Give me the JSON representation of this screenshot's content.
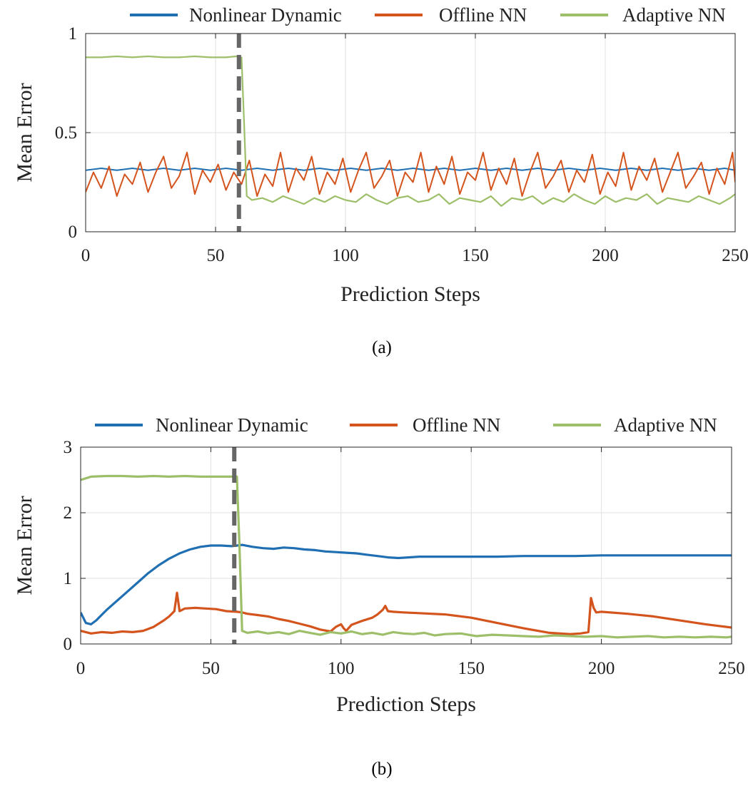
{
  "chart_data": [
    {
      "type": "line",
      "caption": "(a)",
      "xlabel": "Prediction Steps",
      "ylabel": "Mean Error",
      "xlim": [
        0,
        250
      ],
      "ylim": [
        0,
        1
      ],
      "xticks": [
        0,
        50,
        100,
        150,
        200,
        250
      ],
      "yticks": [
        0,
        0.5,
        1
      ],
      "ytick_labels": [
        "0",
        "0.5",
        "1"
      ],
      "grid": true,
      "legend_position": "top",
      "vline": {
        "x": 59,
        "style": "dashed",
        "color": "#666666"
      },
      "series": [
        {
          "name": "Nonlinear Dynamic",
          "color": "#1f6fb2",
          "x": [
            0,
            6,
            12,
            18,
            24,
            30,
            36,
            42,
            48,
            54,
            60,
            66,
            72,
            78,
            84,
            90,
            96,
            102,
            108,
            114,
            120,
            126,
            132,
            138,
            144,
            150,
            156,
            162,
            168,
            174,
            180,
            186,
            192,
            198,
            204,
            210,
            216,
            222,
            228,
            234,
            240,
            246,
            250
          ],
          "y": [
            0.31,
            0.32,
            0.31,
            0.32,
            0.31,
            0.32,
            0.31,
            0.32,
            0.31,
            0.32,
            0.31,
            0.32,
            0.31,
            0.32,
            0.31,
            0.32,
            0.31,
            0.32,
            0.31,
            0.32,
            0.31,
            0.32,
            0.31,
            0.32,
            0.31,
            0.32,
            0.31,
            0.32,
            0.31,
            0.32,
            0.31,
            0.32,
            0.31,
            0.32,
            0.31,
            0.32,
            0.31,
            0.32,
            0.31,
            0.32,
            0.31,
            0.32,
            0.31
          ]
        },
        {
          "name": "Offline NN",
          "color": "#d4541e",
          "x": [
            0,
            3,
            6,
            9,
            12,
            15,
            18,
            21,
            24,
            27,
            30,
            33,
            36,
            39,
            42,
            45,
            48,
            51,
            54,
            57,
            60,
            63,
            66,
            69,
            72,
            75,
            78,
            81,
            84,
            87,
            90,
            93,
            96,
            99,
            102,
            105,
            108,
            111,
            114,
            117,
            120,
            123,
            126,
            129,
            132,
            135,
            138,
            141,
            144,
            147,
            150,
            153,
            156,
            159,
            162,
            165,
            168,
            171,
            174,
            177,
            180,
            183,
            186,
            189,
            192,
            195,
            198,
            201,
            204,
            207,
            210,
            213,
            216,
            219,
            222,
            225,
            228,
            231,
            234,
            237,
            240,
            243,
            246,
            249,
            250
          ],
          "y": [
            0.2,
            0.3,
            0.22,
            0.33,
            0.18,
            0.29,
            0.24,
            0.35,
            0.2,
            0.3,
            0.38,
            0.22,
            0.28,
            0.4,
            0.19,
            0.31,
            0.25,
            0.34,
            0.21,
            0.3,
            0.24,
            0.36,
            0.18,
            0.29,
            0.23,
            0.4,
            0.2,
            0.32,
            0.26,
            0.38,
            0.19,
            0.3,
            0.24,
            0.37,
            0.2,
            0.31,
            0.4,
            0.22,
            0.28,
            0.36,
            0.18,
            0.3,
            0.25,
            0.4,
            0.2,
            0.33,
            0.24,
            0.38,
            0.19,
            0.3,
            0.26,
            0.4,
            0.21,
            0.32,
            0.24,
            0.37,
            0.18,
            0.3,
            0.4,
            0.22,
            0.28,
            0.36,
            0.2,
            0.31,
            0.25,
            0.39,
            0.19,
            0.3,
            0.23,
            0.4,
            0.21,
            0.33,
            0.26,
            0.37,
            0.2,
            0.3,
            0.4,
            0.22,
            0.28,
            0.35,
            0.19,
            0.32,
            0.24,
            0.4,
            0.25
          ]
        },
        {
          "name": "Adaptive NN",
          "color": "#9dbf6a",
          "x": [
            0,
            6,
            12,
            18,
            24,
            30,
            36,
            42,
            48,
            54,
            58,
            60,
            61,
            62,
            64,
            68,
            72,
            76,
            80,
            84,
            88,
            92,
            96,
            100,
            104,
            108,
            112,
            116,
            120,
            124,
            128,
            132,
            136,
            140,
            144,
            148,
            152,
            156,
            160,
            164,
            168,
            172,
            176,
            180,
            184,
            188,
            192,
            196,
            200,
            204,
            208,
            212,
            216,
            220,
            224,
            228,
            232,
            236,
            240,
            244,
            248,
            250
          ],
          "y": [
            0.88,
            0.88,
            0.885,
            0.88,
            0.885,
            0.88,
            0.88,
            0.885,
            0.88,
            0.88,
            0.885,
            0.88,
            0.55,
            0.18,
            0.16,
            0.17,
            0.15,
            0.18,
            0.16,
            0.14,
            0.17,
            0.15,
            0.18,
            0.16,
            0.15,
            0.19,
            0.16,
            0.14,
            0.17,
            0.18,
            0.15,
            0.16,
            0.19,
            0.14,
            0.17,
            0.16,
            0.15,
            0.18,
            0.13,
            0.17,
            0.16,
            0.18,
            0.14,
            0.17,
            0.15,
            0.19,
            0.16,
            0.14,
            0.18,
            0.15,
            0.17,
            0.16,
            0.19,
            0.14,
            0.17,
            0.16,
            0.15,
            0.18,
            0.16,
            0.14,
            0.17,
            0.19
          ]
        }
      ]
    },
    {
      "type": "line",
      "caption": "(b)",
      "xlabel": "Prediction Steps",
      "ylabel": "Mean Error",
      "xlim": [
        0,
        250
      ],
      "ylim": [
        0,
        3
      ],
      "xticks": [
        0,
        50,
        100,
        150,
        200,
        250
      ],
      "yticks": [
        0,
        1,
        2,
        3
      ],
      "ytick_labels": [
        "0",
        "1",
        "2",
        "3"
      ],
      "grid": true,
      "legend_position": "top",
      "vline": {
        "x": 59,
        "style": "dashed",
        "color": "#666666"
      },
      "series": [
        {
          "name": "Nonlinear Dynamic",
          "color": "#1f6fb2",
          "x": [
            0,
            2,
            4,
            6,
            8,
            10,
            14,
            18,
            22,
            26,
            30,
            34,
            38,
            42,
            46,
            50,
            54,
            58,
            62,
            66,
            70,
            74,
            78,
            82,
            86,
            90,
            94,
            98,
            102,
            106,
            110,
            114,
            118,
            122,
            126,
            130,
            140,
            150,
            160,
            170,
            180,
            190,
            200,
            210,
            220,
            230,
            240,
            250
          ],
          "y": [
            0.48,
            0.32,
            0.3,
            0.36,
            0.44,
            0.52,
            0.66,
            0.8,
            0.94,
            1.08,
            1.2,
            1.3,
            1.38,
            1.44,
            1.48,
            1.5,
            1.5,
            1.49,
            1.51,
            1.48,
            1.46,
            1.45,
            1.47,
            1.46,
            1.44,
            1.43,
            1.41,
            1.4,
            1.39,
            1.38,
            1.36,
            1.34,
            1.32,
            1.31,
            1.32,
            1.33,
            1.33,
            1.33,
            1.33,
            1.34,
            1.34,
            1.34,
            1.35,
            1.35,
            1.35,
            1.35,
            1.35,
            1.35
          ]
        },
        {
          "name": "Offline NN",
          "color": "#d4541e",
          "x": [
            0,
            4,
            8,
            12,
            16,
            20,
            24,
            28,
            32,
            34,
            36,
            37,
            38,
            40,
            44,
            48,
            52,
            56,
            60,
            62,
            64,
            68,
            72,
            76,
            80,
            84,
            88,
            92,
            96,
            98,
            100,
            101,
            102,
            104,
            108,
            112,
            114,
            116,
            117,
            118,
            120,
            124,
            130,
            140,
            150,
            160,
            170,
            180,
            188,
            192,
            195,
            196,
            197,
            198,
            200,
            210,
            220,
            230,
            240,
            250
          ],
          "y": [
            0.2,
            0.16,
            0.18,
            0.17,
            0.19,
            0.18,
            0.2,
            0.26,
            0.36,
            0.42,
            0.5,
            0.78,
            0.5,
            0.54,
            0.55,
            0.54,
            0.53,
            0.5,
            0.49,
            0.48,
            0.46,
            0.44,
            0.42,
            0.38,
            0.35,
            0.31,
            0.27,
            0.22,
            0.19,
            0.26,
            0.3,
            0.24,
            0.2,
            0.29,
            0.35,
            0.4,
            0.45,
            0.52,
            0.58,
            0.5,
            0.49,
            0.48,
            0.47,
            0.45,
            0.4,
            0.32,
            0.24,
            0.17,
            0.15,
            0.16,
            0.18,
            0.7,
            0.55,
            0.48,
            0.49,
            0.46,
            0.42,
            0.36,
            0.3,
            0.25
          ]
        },
        {
          "name": "Adaptive NN",
          "color": "#9dbf6a",
          "x": [
            0,
            4,
            10,
            16,
            22,
            28,
            34,
            40,
            46,
            52,
            58,
            60,
            61,
            62,
            64,
            68,
            72,
            76,
            80,
            84,
            88,
            92,
            96,
            100,
            104,
            108,
            112,
            116,
            120,
            124,
            128,
            132,
            136,
            140,
            146,
            152,
            158,
            164,
            170,
            176,
            182,
            188,
            194,
            200,
            206,
            212,
            218,
            224,
            230,
            236,
            242,
            248,
            250
          ],
          "y": [
            2.5,
            2.55,
            2.56,
            2.56,
            2.55,
            2.56,
            2.55,
            2.56,
            2.55,
            2.55,
            2.55,
            2.55,
            1.5,
            0.2,
            0.17,
            0.19,
            0.16,
            0.18,
            0.15,
            0.2,
            0.17,
            0.14,
            0.18,
            0.16,
            0.19,
            0.15,
            0.17,
            0.14,
            0.18,
            0.16,
            0.15,
            0.17,
            0.13,
            0.15,
            0.16,
            0.12,
            0.14,
            0.13,
            0.12,
            0.11,
            0.13,
            0.12,
            0.11,
            0.12,
            0.1,
            0.11,
            0.12,
            0.1,
            0.11,
            0.1,
            0.11,
            0.1,
            0.11
          ]
        }
      ]
    }
  ]
}
